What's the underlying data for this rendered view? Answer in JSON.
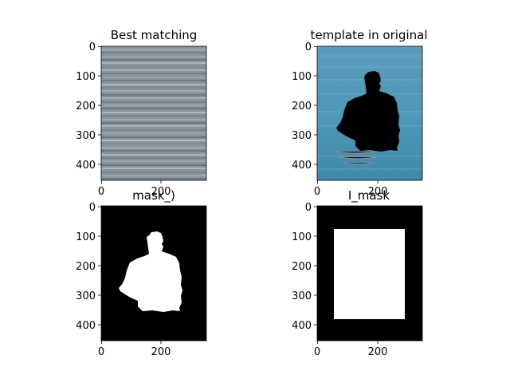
{
  "figure": {
    "panels": [
      {
        "title": "Best matching",
        "image": "water-surface-texture",
        "xticks": [
          "0",
          "200"
        ],
        "yticks": [
          "0",
          "100",
          "200",
          "300",
          "400"
        ]
      },
      {
        "title": "template in original",
        "image": "person-in-water-with-black-silhouette",
        "xticks": [
          "0",
          "200"
        ],
        "yticks": [
          "0",
          "100",
          "200",
          "300",
          "400"
        ]
      },
      {
        "title": "mask_)",
        "image": "white-person-silhouette-on-black",
        "xticks": [
          "0",
          "200"
        ],
        "yticks": [
          "0",
          "100",
          "200",
          "300",
          "400"
        ]
      },
      {
        "title": "I_mask",
        "image": "white-rectangle-on-black",
        "xticks": [
          "0",
          "200"
        ],
        "yticks": [
          "0",
          "100",
          "200",
          "300",
          "400"
        ]
      }
    ]
  },
  "chart_data": [
    {
      "type": "image",
      "title": "Best matching",
      "xlim": [
        0,
        350
      ],
      "ylim": [
        455,
        0
      ],
      "xticks": [
        0,
        200
      ],
      "yticks": [
        0,
        100,
        200,
        300,
        400
      ]
    },
    {
      "type": "image",
      "title": "template in original",
      "xlim": [
        0,
        350
      ],
      "ylim": [
        455,
        0
      ],
      "xticks": [
        0,
        200
      ],
      "yticks": [
        0,
        100,
        200,
        300,
        400
      ]
    },
    {
      "type": "image",
      "title": "mask_)",
      "xlim": [
        0,
        350
      ],
      "ylim": [
        455,
        0
      ],
      "xticks": [
        0,
        200
      ],
      "yticks": [
        0,
        100,
        200,
        300,
        400
      ]
    },
    {
      "type": "image",
      "title": "I_mask",
      "xlim": [
        0,
        350
      ],
      "ylim": [
        455,
        0
      ],
      "xticks": [
        0,
        200
      ],
      "yticks": [
        0,
        100,
        200,
        300,
        400
      ],
      "white_rect": {
        "x": [
          55,
          295
        ],
        "y": [
          75,
          380
        ]
      }
    }
  ]
}
